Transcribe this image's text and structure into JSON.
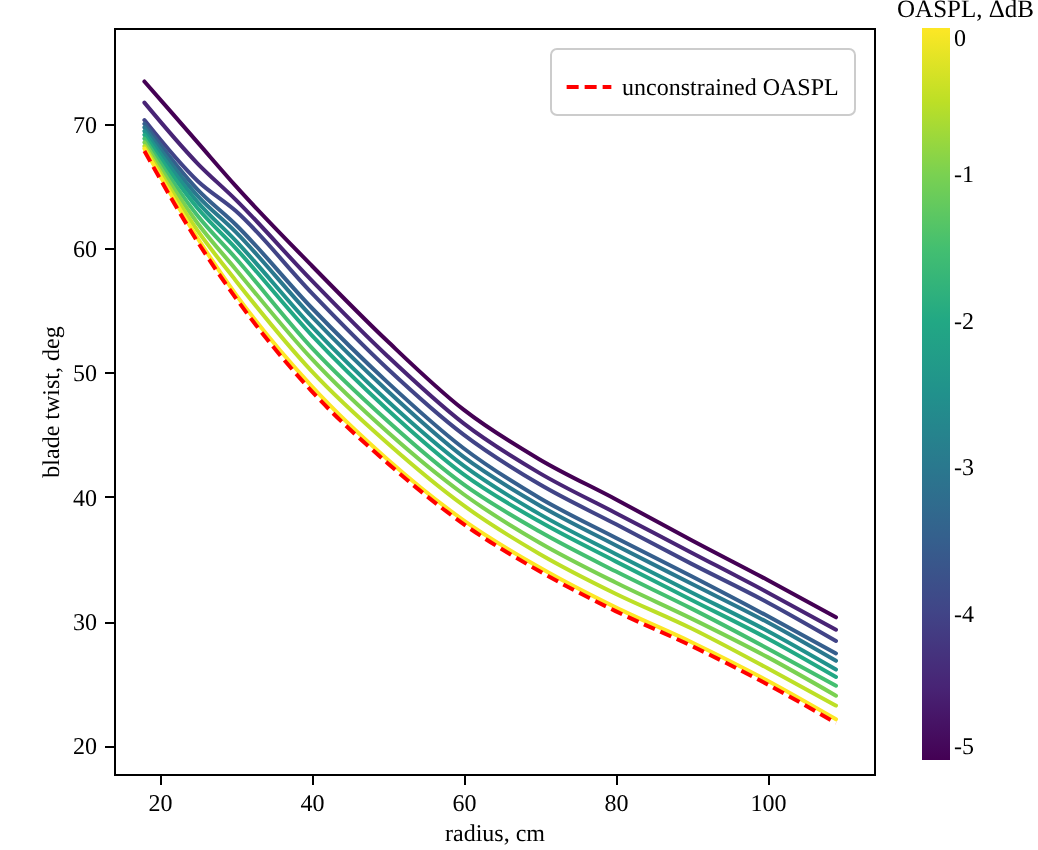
{
  "chart_data": {
    "type": "line",
    "xlabel": "radius, cm",
    "ylabel": "blade twist, deg",
    "clabel": "OASPL, ΔdB",
    "legend": "top right",
    "x": [
      18,
      25,
      30,
      40,
      50,
      60,
      70,
      80,
      90,
      100,
      109
    ],
    "xlim": [
      14,
      114
    ],
    "xticks": [
      20,
      40,
      60,
      80,
      100
    ],
    "ylim": [
      17.7,
      77.7
    ],
    "yticks": [
      20,
      30,
      40,
      50,
      60,
      70
    ],
    "clim": [
      -5,
      0
    ],
    "cticks": [
      {
        "value": -5,
        "label": "-5"
      },
      {
        "value": -4,
        "label": "-4"
      },
      {
        "value": -3,
        "label": "-3"
      },
      {
        "value": -2,
        "label": "-2"
      },
      {
        "value": -1,
        "label": "-1"
      },
      {
        "value": 0,
        "label": "0"
      }
    ],
    "series": [
      {
        "color": "#440154",
        "values": [
          73.4,
          68.5,
          65.0,
          58.6,
          52.5,
          47.0,
          43.0,
          39.8,
          36.5,
          33.3,
          30.3
        ]
      },
      {
        "color": "#482475",
        "values": [
          71.7,
          66.8,
          63.9,
          57.4,
          51.3,
          45.9,
          41.9,
          38.7,
          35.5,
          32.3,
          29.3
        ]
      },
      {
        "color": "#414487",
        "values": [
          70.3,
          65.4,
          63.0,
          56.4,
          50.3,
          45.0,
          41.0,
          37.8,
          34.6,
          31.5,
          28.4
        ]
      },
      {
        "color": "#355f8d",
        "values": [
          70.0,
          64.7,
          61.9,
          55.2,
          49.2,
          43.9,
          39.9,
          36.7,
          33.6,
          30.4,
          27.4
        ]
      },
      {
        "color": "#2a788e",
        "values": [
          69.7,
          64.2,
          61.3,
          54.5,
          48.5,
          43.2,
          39.3,
          36.1,
          33.0,
          29.9,
          26.8
        ]
      },
      {
        "color": "#21918c",
        "values": [
          69.4,
          63.7,
          60.6,
          53.7,
          47.7,
          42.5,
          38.6,
          35.4,
          32.3,
          29.2,
          26.1
        ]
      },
      {
        "color": "#22a884",
        "values": [
          69.1,
          63.2,
          60.0,
          53.0,
          47.0,
          41.8,
          38.0,
          34.8,
          31.7,
          28.6,
          25.5
        ]
      },
      {
        "color": "#44bf70",
        "values": [
          68.8,
          62.6,
          59.2,
          52.0,
          46.1,
          41.0,
          37.2,
          34.0,
          31.0,
          27.8,
          24.8
        ]
      },
      {
        "color": "#7ad151",
        "values": [
          68.5,
          62.0,
          58.3,
          51.1,
          45.2,
          40.2,
          36.3,
          33.1,
          30.2,
          27.1,
          24.0
        ]
      },
      {
        "color": "#bddf26",
        "values": [
          68.2,
          61.4,
          57.4,
          50.1,
          44.3,
          39.3,
          35.4,
          32.2,
          29.4,
          26.2,
          23.2
        ]
      },
      {
        "color": "#fde725",
        "values": [
          68.0,
          60.8,
          56.3,
          48.9,
          43.0,
          38.1,
          34.3,
          31.1,
          28.3,
          25.2,
          22.1
        ]
      },
      {
        "name": "unconstrained OASPL",
        "color": "#ff0000",
        "line_style": "dashed",
        "values": [
          67.8,
          60.5,
          56.0,
          48.5,
          42.7,
          37.8,
          34.0,
          30.8,
          28.0,
          24.9,
          21.8
        ]
      }
    ]
  }
}
